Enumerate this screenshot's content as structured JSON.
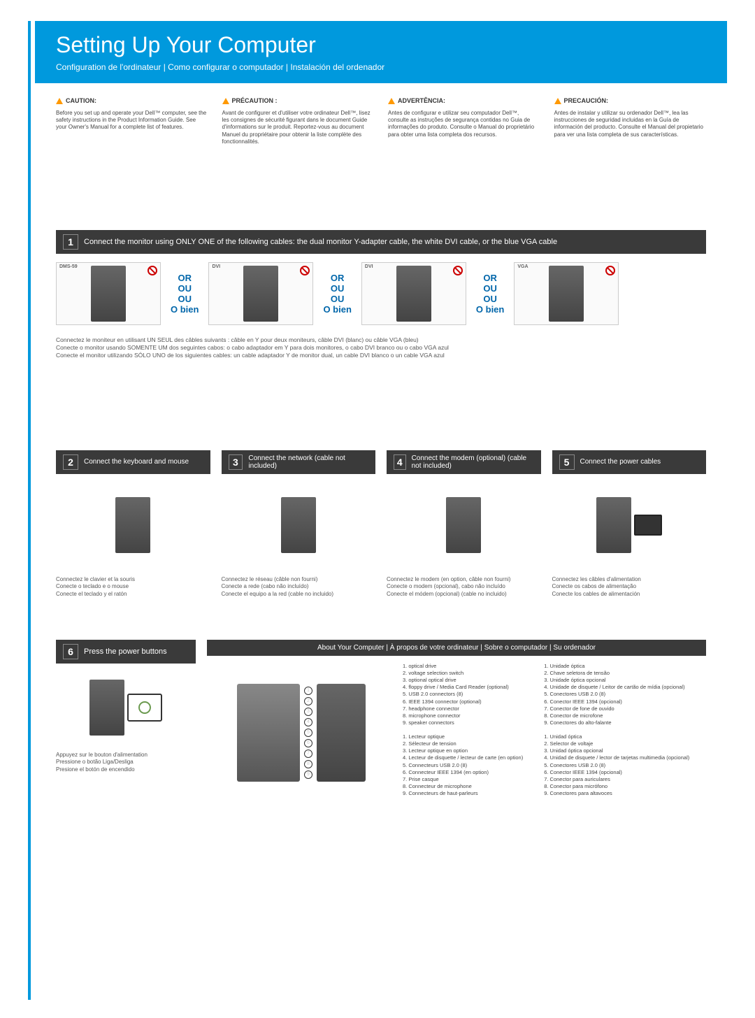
{
  "header": {
    "title": "Setting Up Your Computer",
    "subtitle": "Configuration de l'ordinateur | Como configurar o computador | Instalación del ordenador"
  },
  "cautions": [
    {
      "title": "CAUTION:",
      "body": "Before you set up and operate your Dell™ computer, see the safety instructions in the Product Information Guide. See your Owner's Manual for a complete list of features."
    },
    {
      "title": "PRÉCAUTION :",
      "body": "Avant de configurer et d'utiliser votre ordinateur Dell™, lisez les consignes de sécurité figurant dans le document Guide d'informations sur le produit. Reportez-vous au document Manuel du propriétaire pour obtenir la liste complète des fonctionnalités."
    },
    {
      "title": "ADVERTÊNCIA:",
      "body": "Antes de configurar e utilizar seu computador Dell™, consulte as instruções de segurança contidas no Guia de informações do produto. Consulte o Manual do proprietário para obter uma lista completa dos recursos."
    },
    {
      "title": "PRECAUCIÓN:",
      "body": "Antes de instalar y utilizar su ordenador Dell™, lea las instrucciones de seguridad incluidas en la Guía de información del producto. Consulte el Manual del propietario para ver una lista completa de sus características."
    }
  ],
  "step1": {
    "num": "1",
    "text": "Connect the monitor using ONLY ONE of the following cables: the dual monitor Y-adapter cable, the white DVI cable, or the blue VGA cable",
    "cables": [
      "DMS-59",
      "DVI",
      "DVI",
      "VGA"
    ],
    "or": {
      "l1": "OR",
      "l2": "OU",
      "l3": "OU",
      "l4": "O bien"
    },
    "trans": [
      "Connectez le moniteur en utilisant UN SEUL des câbles suivants : câble en Y pour deux moniteurs, câble DVI (blanc) ou câble VGA (bleu)",
      "Conecte o monitor usando SOMENTE UM dos seguintes cabos: o cabo adaptador em Y para dois monitores, o cabo DVI branco ou o cabo VGA azul",
      "Conecte el monitor utilizando SÓLO UNO de los siguientes cables: un cable adaptador Y de monitor dual, un cable DVI blanco o un cable VGA azul"
    ]
  },
  "steps": [
    {
      "num": "2",
      "title": "Connect the keyboard and mouse",
      "trans": [
        "Connectez le clavier et la souris",
        "Conecte o teclado e o mouse",
        "Conecte el teclado y el ratón"
      ]
    },
    {
      "num": "3",
      "title": "Connect the network (cable not included)",
      "trans": [
        "Connectez le réseau (câble non fourni)",
        "Conecte a rede (cabo não incluído)",
        "Conecte el equipo a la red (cable no incluido)"
      ]
    },
    {
      "num": "4",
      "title": "Connect the modem (optional) (cable not included)",
      "trans": [
        "Connectez le modem (en option, câble non fourni)",
        "Conecte o modem (opcional), cabo não incluído",
        "Conecte el módem (opcional) (cable no incluido)"
      ]
    },
    {
      "num": "5",
      "title": "Connect the power cables",
      "trans": [
        "Connectez les câbles d'alimentation",
        "Conecte os cabos de alimentação",
        "Conecte los cables de alimentación"
      ]
    }
  ],
  "step6": {
    "num": "6",
    "title": "Press the power buttons",
    "trans": [
      "Appuyez sur le bouton d'alimentation",
      "Pressione o botão Liga/Desliga",
      "Presione el botón de encendido"
    ]
  },
  "about": {
    "title": "About Your Computer | À propos de votre ordinateur | Sobre o computador | Su ordenador",
    "lists": {
      "en": [
        "1. optical drive",
        "2. voltage selection switch",
        "3. optional optical drive",
        "4. floppy drive / Media Card Reader (optional)",
        "5. USB 2.0 connectors (8)",
        "6. IEEE 1394 connector (optional)",
        "7. headphone connector",
        "8. microphone connector",
        "9. speaker connectors"
      ],
      "fr": [
        "1. Lecteur optique",
        "2. Sélecteur de tension",
        "3. Lecteur optique en option",
        "4. Lecteur de disquette / lecteur de carte (en option)",
        "5. Connecteurs USB 2.0 (8)",
        "6. Connecteur IEEE 1394 (en option)",
        "7. Prise casque",
        "8. Connecteur de microphone",
        "9. Connecteurs de haut-parleurs"
      ],
      "pt": [
        "1. Unidade óptica",
        "2. Chave seletora de tensão",
        "3. Unidade óptica opcional",
        "4. Unidade de disquete / Leitor de cartão de mídia (opcional)",
        "5. Conectores USB 2.0 (8)",
        "6. Conector IEEE 1394 (opcional)",
        "7. Conector de fone de ouvido",
        "8. Conector de microfone",
        "9. Conectores do alto-falante"
      ],
      "es": [
        "1. Unidad óptica",
        "2. Selector de voltaje",
        "3. Unidad óptica opcional",
        "4. Unidad de disquete / lector de tarjetas multimedia (opcional)",
        "5. Conectores USB 2.0 (8)",
        "6. Conector IEEE 1394 (opcional)",
        "7. Conector para auriculares",
        "8. Conector para micrófono",
        "9. Conectores para altavoces"
      ]
    }
  }
}
